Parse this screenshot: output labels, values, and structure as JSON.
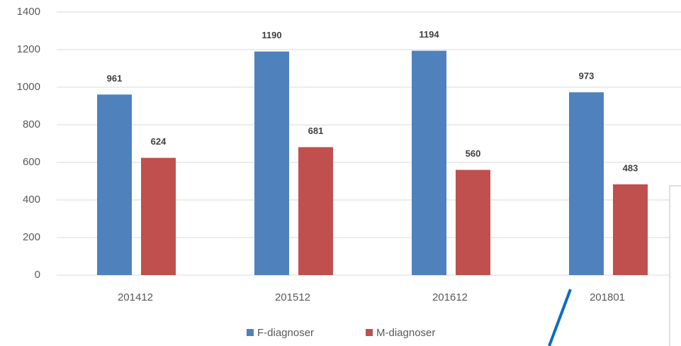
{
  "chart_data": {
    "type": "bar",
    "categories": [
      "201412",
      "201512",
      "201612",
      "201801"
    ],
    "series": [
      {
        "name": "F-diagnoser",
        "color": "#4f81bd",
        "values": [
          961,
          1190,
          1194,
          973
        ]
      },
      {
        "name": "M-diagnoser",
        "color": "#c0504d",
        "values": [
          624,
          681,
          560,
          483
        ]
      }
    ],
    "ylim": [
      0,
      1400
    ],
    "yticks": [
      0,
      200,
      400,
      600,
      800,
      1000,
      1200,
      1400
    ],
    "grid": true,
    "legend": "bottom",
    "data_labels": true
  }
}
